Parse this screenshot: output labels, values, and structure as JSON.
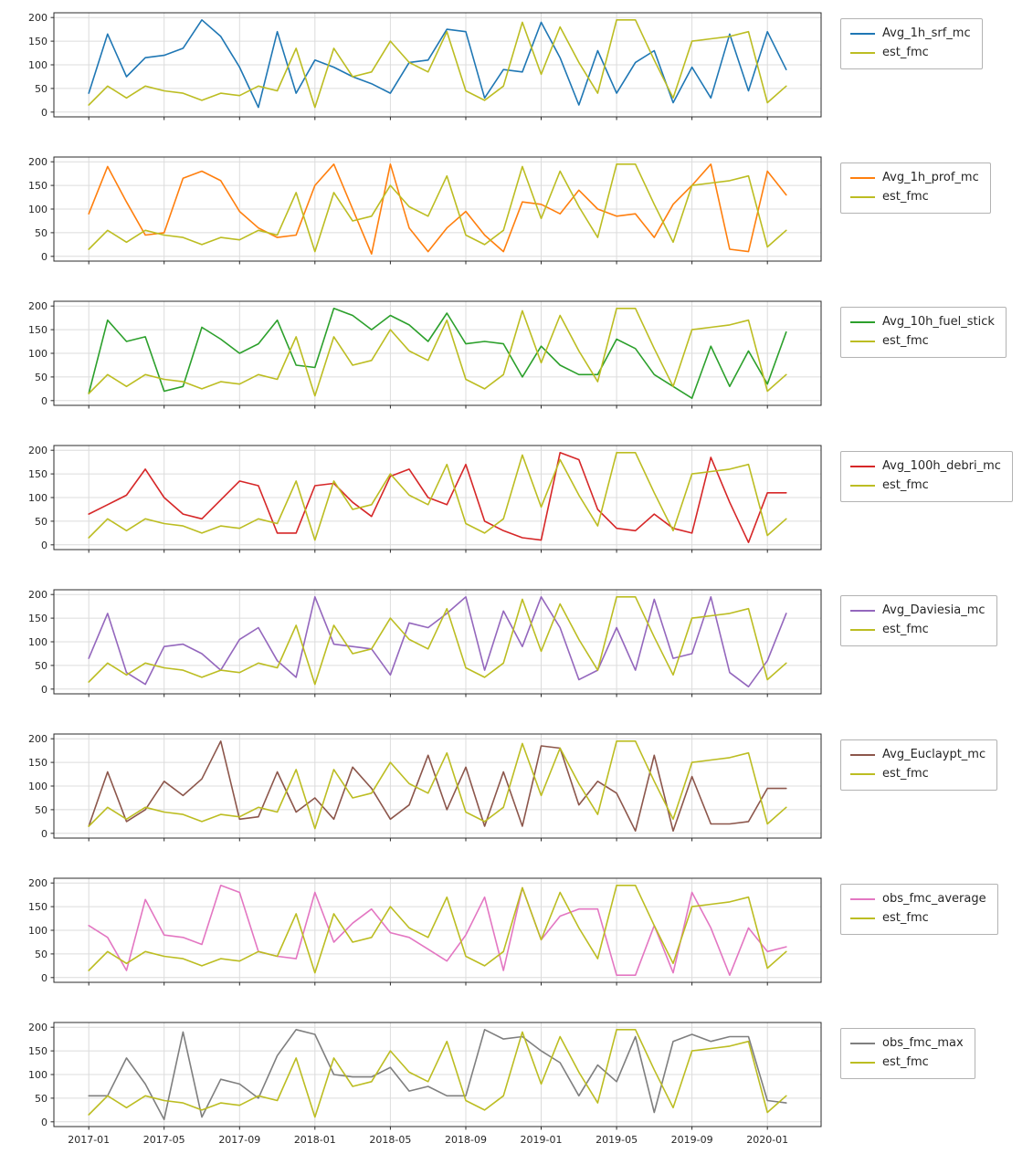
{
  "figure": {
    "x_tick_labels": [
      "2017-01",
      "2017-05",
      "2017-09",
      "2018-01",
      "2018-05",
      "2018-09",
      "2019-01",
      "2019-05",
      "2019-09",
      "2020-01"
    ],
    "y_ticks": [
      0,
      50,
      100,
      150,
      200
    ],
    "ylim": [
      0,
      200
    ],
    "grid": true,
    "legend_position": "right-outside",
    "x_categories": [
      "2017-01",
      "2017-02",
      "2017-03",
      "2017-04",
      "2017-05",
      "2017-06",
      "2017-07",
      "2017-08",
      "2017-09",
      "2017-10",
      "2017-11",
      "2017-12",
      "2018-01",
      "2018-02",
      "2018-03",
      "2018-04",
      "2018-05",
      "2018-06",
      "2018-07",
      "2018-08",
      "2018-09",
      "2018-10",
      "2018-11",
      "2018-12",
      "2019-01",
      "2019-02",
      "2019-03",
      "2019-04",
      "2019-05",
      "2019-06",
      "2019-07",
      "2019-08",
      "2019-09",
      "2019-10",
      "2019-11",
      "2019-12",
      "2020-01",
      "2020-02"
    ]
  },
  "est_fmc": {
    "name": "est_fmc",
    "color": "#bcbd22",
    "values": [
      15,
      55,
      30,
      55,
      45,
      40,
      25,
      40,
      35,
      55,
      45,
      135,
      10,
      135,
      75,
      85,
      150,
      105,
      85,
      170,
      45,
      25,
      55,
      190,
      80,
      180,
      105,
      40,
      195,
      195,
      110,
      30,
      150,
      155,
      160,
      170,
      20,
      55
    ]
  },
  "chart_data": [
    {
      "type": "line",
      "legend": [
        "Avg_1h_srf_mc",
        "est_fmc"
      ],
      "series": [
        {
          "name": "Avg_1h_srf_mc",
          "color": "#1f77b4",
          "values": [
            40,
            165,
            75,
            115,
            120,
            135,
            195,
            160,
            95,
            10,
            170,
            40,
            110,
            95,
            75,
            60,
            40,
            105,
            110,
            175,
            170,
            30,
            90,
            85,
            190,
            115,
            15,
            130,
            40,
            105,
            130,
            20,
            95,
            30,
            165,
            45,
            170,
            90
          ]
        }
      ]
    },
    {
      "type": "line",
      "legend": [
        "Avg_1h_prof_mc",
        "est_fmc"
      ],
      "series": [
        {
          "name": "Avg_1h_prof_mc",
          "color": "#ff7f0e",
          "values": [
            90,
            190,
            115,
            45,
            50,
            165,
            180,
            160,
            95,
            60,
            40,
            45,
            150,
            195,
            100,
            5,
            195,
            60,
            10,
            60,
            95,
            45,
            10,
            115,
            110,
            90,
            140,
            100,
            85,
            90,
            40,
            110,
            150,
            195,
            15,
            10,
            180,
            130
          ]
        }
      ]
    },
    {
      "type": "line",
      "legend": [
        "Avg_10h_fuel_stick",
        "est_fmc"
      ],
      "series": [
        {
          "name": "Avg_10h_fuel_stick",
          "color": "#2ca02c",
          "values": [
            15,
            170,
            125,
            135,
            20,
            30,
            155,
            130,
            100,
            120,
            170,
            75,
            70,
            195,
            180,
            150,
            180,
            160,
            125,
            185,
            120,
            125,
            120,
            50,
            115,
            75,
            55,
            55,
            130,
            110,
            55,
            30,
            5,
            115,
            30,
            105,
            35,
            145
          ]
        }
      ]
    },
    {
      "type": "line",
      "legend": [
        "Avg_100h_debri_mc",
        "est_fmc"
      ],
      "series": [
        {
          "name": "Avg_100h_debri_mc",
          "color": "#d62728",
          "values": [
            65,
            85,
            105,
            160,
            100,
            65,
            55,
            95,
            135,
            125,
            25,
            25,
            125,
            130,
            90,
            60,
            145,
            160,
            100,
            85,
            170,
            50,
            30,
            15,
            10,
            195,
            180,
            75,
            35,
            30,
            65,
            35,
            25,
            185,
            90,
            5,
            110,
            110
          ]
        }
      ]
    },
    {
      "type": "line",
      "legend": [
        "Avg_Daviesia_mc",
        "est_fmc"
      ],
      "series": [
        {
          "name": "Avg_Daviesia_mc",
          "color": "#9467bd",
          "values": [
            65,
            160,
            35,
            10,
            90,
            95,
            75,
            40,
            105,
            130,
            60,
            25,
            195,
            95,
            90,
            85,
            30,
            140,
            130,
            160,
            195,
            40,
            165,
            90,
            195,
            130,
            20,
            40,
            130,
            40,
            190,
            65,
            75,
            195,
            35,
            5,
            60,
            160
          ]
        }
      ]
    },
    {
      "type": "line",
      "legend": [
        "Avg_Euclaypt_mc",
        "est_fmc"
      ],
      "series": [
        {
          "name": "Avg_Euclaypt_mc",
          "color": "#8c564b",
          "values": [
            15,
            130,
            25,
            50,
            110,
            80,
            115,
            195,
            30,
            35,
            130,
            45,
            75,
            30,
            140,
            95,
            30,
            60,
            165,
            50,
            140,
            15,
            130,
            15,
            185,
            180,
            60,
            110,
            85,
            5,
            165,
            5,
            120,
            20,
            20,
            25,
            95,
            95
          ]
        }
      ]
    },
    {
      "type": "line",
      "legend": [
        "obs_fmc_average",
        "est_fmc"
      ],
      "series": [
        {
          "name": "obs_fmc_average",
          "color": "#e377c2",
          "values": [
            110,
            85,
            15,
            165,
            90,
            85,
            70,
            195,
            180,
            55,
            45,
            40,
            180,
            75,
            115,
            145,
            95,
            85,
            60,
            35,
            90,
            170,
            15,
            190,
            80,
            130,
            145,
            145,
            5,
            5,
            110,
            10,
            180,
            105,
            5,
            105,
            55,
            65
          ]
        }
      ]
    },
    {
      "type": "line",
      "legend": [
        "obs_fmc_max",
        "est_fmc"
      ],
      "series": [
        {
          "name": "obs_fmc_max",
          "color": "#7f7f7f",
          "values": [
            55,
            55,
            135,
            80,
            5,
            190,
            10,
            90,
            80,
            50,
            140,
            195,
            185,
            100,
            95,
            95,
            115,
            65,
            75,
            55,
            55,
            195,
            175,
            180,
            150,
            125,
            55,
            120,
            85,
            180,
            20,
            170,
            185,
            170,
            180,
            180,
            45,
            40
          ]
        }
      ]
    }
  ]
}
